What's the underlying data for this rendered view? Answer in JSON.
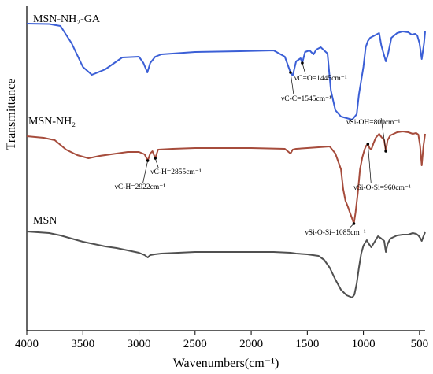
{
  "chart_data": {
    "type": "line",
    "title": "",
    "xlabel": "Wavenumbers(cm⁻¹)",
    "ylabel": "Transmittance",
    "x_reversed": true,
    "xlim": [
      4000,
      450
    ],
    "x_ticks": [
      4000,
      3500,
      3000,
      2500,
      2000,
      1500,
      1000,
      500
    ],
    "grid": false,
    "series": [
      {
        "name": "MSN-NH₂-GA",
        "color": "#3b5fd6",
        "points": [
          [
            4000,
            30
          ],
          [
            3800,
            30.5
          ],
          [
            3700,
            33
          ],
          [
            3600,
            55
          ],
          [
            3500,
            85
          ],
          [
            3420,
            95
          ],
          [
            3300,
            88
          ],
          [
            3150,
            73
          ],
          [
            3000,
            72
          ],
          [
            2960,
            80
          ],
          [
            2925,
            92
          ],
          [
            2900,
            80
          ],
          [
            2855,
            72
          ],
          [
            2800,
            69
          ],
          [
            2500,
            66
          ],
          [
            2100,
            65
          ],
          [
            1800,
            64
          ],
          [
            1700,
            72
          ],
          [
            1650,
            92
          ],
          [
            1630,
            96
          ],
          [
            1600,
            78
          ],
          [
            1560,
            74
          ],
          [
            1545,
            80
          ],
          [
            1520,
            66
          ],
          [
            1480,
            64
          ],
          [
            1445,
            69
          ],
          [
            1420,
            63
          ],
          [
            1380,
            60
          ],
          [
            1320,
            68
          ],
          [
            1290,
            115
          ],
          [
            1250,
            140
          ],
          [
            1200,
            148
          ],
          [
            1150,
            150
          ],
          [
            1100,
            152
          ],
          [
            1060,
            145
          ],
          [
            1040,
            120
          ],
          [
            1000,
            85
          ],
          [
            980,
            60
          ],
          [
            960,
            52
          ],
          [
            940,
            48
          ],
          [
            900,
            45
          ],
          [
            860,
            42
          ],
          [
            840,
            58
          ],
          [
            800,
            78
          ],
          [
            780,
            68
          ],
          [
            750,
            48
          ],
          [
            700,
            42
          ],
          [
            650,
            40
          ],
          [
            600,
            41
          ],
          [
            570,
            44
          ],
          [
            540,
            43
          ],
          [
            520,
            45
          ],
          [
            500,
            55
          ],
          [
            480,
            75
          ],
          [
            460,
            55
          ],
          [
            450,
            40
          ]
        ]
      },
      {
        "name": "MSN-NH₂",
        "color": "#a64c3c",
        "points": [
          [
            4000,
            173
          ],
          [
            3850,
            175
          ],
          [
            3750,
            178
          ],
          [
            3650,
            190
          ],
          [
            3550,
            197
          ],
          [
            3450,
            201
          ],
          [
            3350,
            198
          ],
          [
            3200,
            195
          ],
          [
            3100,
            193
          ],
          [
            3000,
            193
          ],
          [
            2950,
            196
          ],
          [
            2922,
            204
          ],
          [
            2900,
            195
          ],
          [
            2880,
            192
          ],
          [
            2855,
            201
          ],
          [
            2830,
            190
          ],
          [
            2700,
            189
          ],
          [
            2500,
            188
          ],
          [
            2000,
            188
          ],
          [
            1700,
            189
          ],
          [
            1650,
            195
          ],
          [
            1630,
            190
          ],
          [
            1600,
            189
          ],
          [
            1500,
            188
          ],
          [
            1400,
            187
          ],
          [
            1300,
            186
          ],
          [
            1250,
            195
          ],
          [
            1200,
            215
          ],
          [
            1180,
            240
          ],
          [
            1160,
            255
          ],
          [
            1140,
            262
          ],
          [
            1120,
            270
          ],
          [
            1100,
            278
          ],
          [
            1085,
            284
          ],
          [
            1070,
            270
          ],
          [
            1050,
            245
          ],
          [
            1030,
            215
          ],
          [
            1010,
            200
          ],
          [
            990,
            190
          ],
          [
            975,
            185
          ],
          [
            960,
            183
          ],
          [
            945,
            188
          ],
          [
            930,
            190
          ],
          [
            910,
            182
          ],
          [
            890,
            175
          ],
          [
            860,
            170
          ],
          [
            840,
            174
          ],
          [
            815,
            178
          ],
          [
            800,
            192
          ],
          [
            785,
            178
          ],
          [
            760,
            172
          ],
          [
            700,
            168
          ],
          [
            650,
            167
          ],
          [
            600,
            168
          ],
          [
            560,
            170
          ],
          [
            530,
            169
          ],
          [
            510,
            171
          ],
          [
            495,
            185
          ],
          [
            480,
            210
          ],
          [
            465,
            185
          ],
          [
            450,
            170
          ]
        ]
      },
      {
        "name": "MSN",
        "color": "#505050",
        "points": [
          [
            4000,
            294
          ],
          [
            3800,
            296
          ],
          [
            3700,
            299
          ],
          [
            3600,
            303
          ],
          [
            3500,
            307
          ],
          [
            3400,
            310
          ],
          [
            3300,
            313
          ],
          [
            3200,
            315
          ],
          [
            3100,
            318
          ],
          [
            3000,
            321
          ],
          [
            2950,
            324
          ],
          [
            2922,
            327
          ],
          [
            2900,
            324
          ],
          [
            2860,
            323
          ],
          [
            2800,
            322
          ],
          [
            2500,
            320
          ],
          [
            2000,
            320
          ],
          [
            1800,
            320
          ],
          [
            1650,
            321
          ],
          [
            1600,
            322
          ],
          [
            1500,
            323
          ],
          [
            1400,
            325
          ],
          [
            1350,
            330
          ],
          [
            1300,
            340
          ],
          [
            1250,
            355
          ],
          [
            1200,
            368
          ],
          [
            1150,
            375
          ],
          [
            1100,
            378
          ],
          [
            1080,
            374
          ],
          [
            1060,
            360
          ],
          [
            1040,
            340
          ],
          [
            1020,
            322
          ],
          [
            1000,
            312
          ],
          [
            970,
            305
          ],
          [
            950,
            310
          ],
          [
            930,
            314
          ],
          [
            900,
            307
          ],
          [
            870,
            300
          ],
          [
            840,
            303
          ],
          [
            815,
            306
          ],
          [
            800,
            320
          ],
          [
            785,
            310
          ],
          [
            760,
            303
          ],
          [
            700,
            299
          ],
          [
            650,
            298
          ],
          [
            600,
            298
          ],
          [
            560,
            296
          ],
          [
            530,
            297
          ],
          [
            510,
            299
          ],
          [
            495,
            302
          ],
          [
            480,
            306
          ],
          [
            465,
            300
          ],
          [
            450,
            295
          ]
        ]
      }
    ],
    "series_labels": [
      {
        "series": 0,
        "text": "MSN-NH₂-GA"
      },
      {
        "series": 1,
        "text": "MSN-NH₂"
      },
      {
        "series": 2,
        "text": "MSN"
      }
    ],
    "annotations": [
      {
        "series": 0,
        "x": 1650,
        "text": "νC-C=1545cm⁻¹"
      },
      {
        "series": 0,
        "x": 1545,
        "text": "νC=O=1445cm⁻¹"
      },
      {
        "series": 1,
        "x": 2922,
        "text": "νC-H=2922cm⁻¹"
      },
      {
        "series": 1,
        "x": 2855,
        "text": "νC-H=2855cm⁻¹"
      },
      {
        "series": 1,
        "x": 1085,
        "text": "νSi-O-Si=1085cm⁻¹"
      },
      {
        "series": 1,
        "x": 960,
        "text": "νSi-O-Si=960cm⁻¹"
      },
      {
        "series": 1,
        "x": 800,
        "text": "νSi-OH=800cm⁻¹"
      }
    ]
  }
}
